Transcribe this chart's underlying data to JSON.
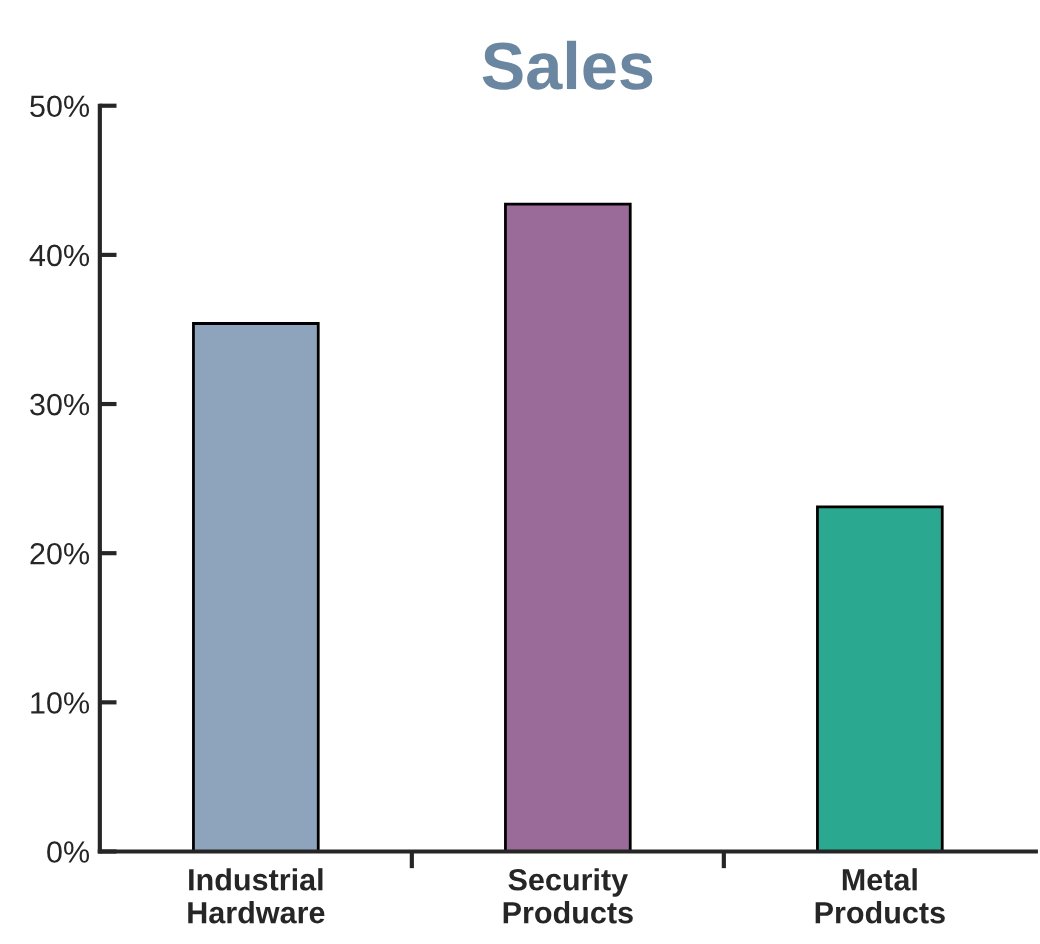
{
  "chart_data": {
    "type": "bar",
    "title": "Sales",
    "categories": [
      "Industrial\nHardware",
      "Security\nProducts",
      "Metal\nProducts"
    ],
    "values": [
      35.4,
      43.4,
      23.1
    ],
    "colors": [
      "#8ea4bc",
      "#9a6a98",
      "#2aa890"
    ],
    "ylim": [
      0,
      50
    ],
    "yticks": [
      {
        "value": 0,
        "label": "0%"
      },
      {
        "value": 10,
        "label": "10%"
      },
      {
        "value": 20,
        "label": "20%"
      },
      {
        "value": 30,
        "label": "30%"
      },
      {
        "value": 40,
        "label": "40%"
      },
      {
        "value": 50,
        "label": "50%"
      }
    ],
    "grid": false
  }
}
